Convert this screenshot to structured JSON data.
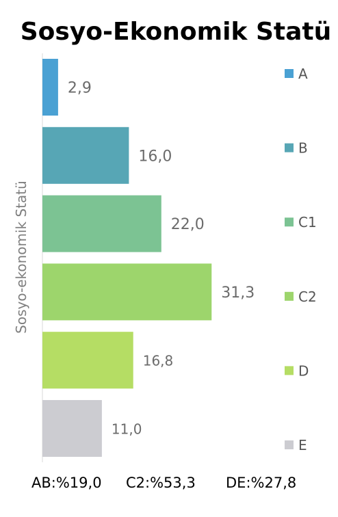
{
  "chart_data": {
    "type": "bar",
    "orientation": "horizontal",
    "title": "Sosyo-Ekonomik Statü",
    "ylabel": "Sosyo-ekonomik Statü",
    "xlabel": "",
    "xlim": [
      0,
      40
    ],
    "grid": false,
    "legend_position": "right",
    "categories": [
      "A",
      "B",
      "C1",
      "C2",
      "D",
      "E"
    ],
    "values": [
      2.9,
      16.0,
      22.0,
      31.3,
      16.8,
      11.0
    ],
    "value_labels": [
      "2,9",
      "16,0",
      "22,0",
      "31,3",
      "16,8",
      "11,0"
    ],
    "colors": [
      "#4aa1d3",
      "#57a6b5",
      "#7cc393",
      "#9dd56c",
      "#b5dd64",
      "#ccccd1"
    ],
    "annotations": [
      "AB:%19,0",
      "C2:%53,3",
      "DE:%27,8"
    ]
  }
}
